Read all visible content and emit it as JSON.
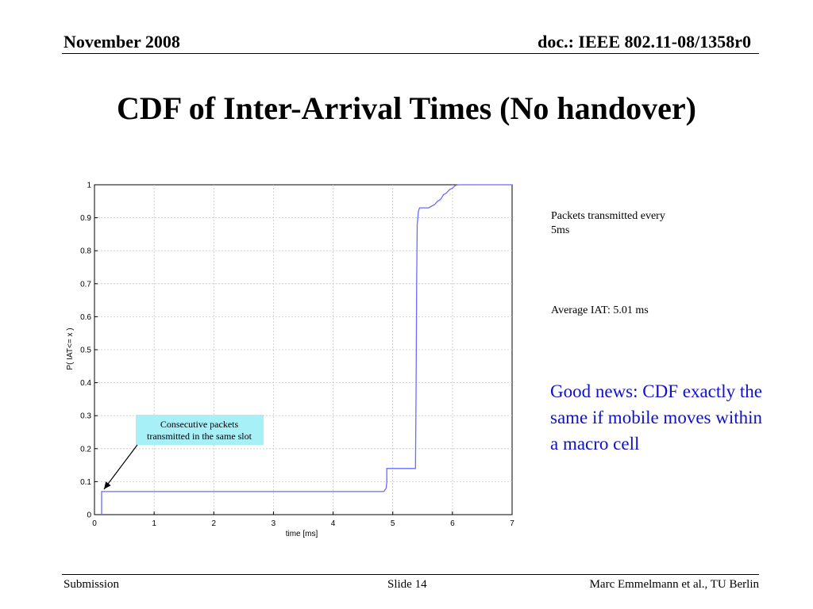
{
  "header": {
    "date": "November 2008",
    "doc_id": "doc.: IEEE 802.11-08/1358r0"
  },
  "slide_title": "CDF of Inter-Arrival Times (No handover)",
  "side_notes": {
    "packets": "Packets transmitted every 5ms",
    "average": "Average IAT: 5.01 ms",
    "good_news": "Good news: CDF exactly the same if mobile moves within a macro cell"
  },
  "footer": {
    "left": "Submission",
    "center": "Slide 14",
    "right": "Marc Emmelmann et al., TU Berlin"
  },
  "colors": {
    "curve": "#6b6bff",
    "annotation_fill": "#a8f0f8",
    "emphasis_text": "#1010cc"
  },
  "chart_data": {
    "type": "line",
    "title": "",
    "xlabel": "time [ms]",
    "ylabel": "P( IAT<= x )",
    "xlim": [
      0,
      7
    ],
    "ylim": [
      0,
      1
    ],
    "xticks": [
      "0",
      "1",
      "2",
      "3",
      "4",
      "5",
      "6",
      "7"
    ],
    "yticks": [
      "0",
      "0.1",
      "0.2",
      "0.3",
      "0.4",
      "0.5",
      "0.6",
      "0.7",
      "0.8",
      "0.9",
      "1"
    ],
    "grid": true,
    "series": [
      {
        "x": [
          0.12,
          0.12,
          0.12,
          4.85,
          4.89,
          4.9,
          4.9,
          5.0,
          5.06,
          5.38,
          5.39,
          5.4,
          5.41,
          5.42,
          5.43,
          5.45,
          5.6,
          5.65,
          5.7,
          5.75,
          5.8,
          5.85,
          5.9,
          5.95,
          6.0,
          6.05,
          6.1,
          7.0
        ],
        "y": [
          0.0,
          0.07,
          0.07,
          0.07,
          0.08,
          0.1,
          0.14,
          0.14,
          0.14,
          0.14,
          0.35,
          0.7,
          0.88,
          0.9,
          0.92,
          0.93,
          0.93,
          0.935,
          0.94,
          0.95,
          0.955,
          0.97,
          0.975,
          0.985,
          0.99,
          0.998,
          1.0,
          1.0
        ]
      }
    ],
    "annotation": {
      "text_line1": "Consecutive packets",
      "text_line2": "transmitted in the same slot",
      "points_to_x": 0.12,
      "points_to_y": 0.07
    }
  }
}
